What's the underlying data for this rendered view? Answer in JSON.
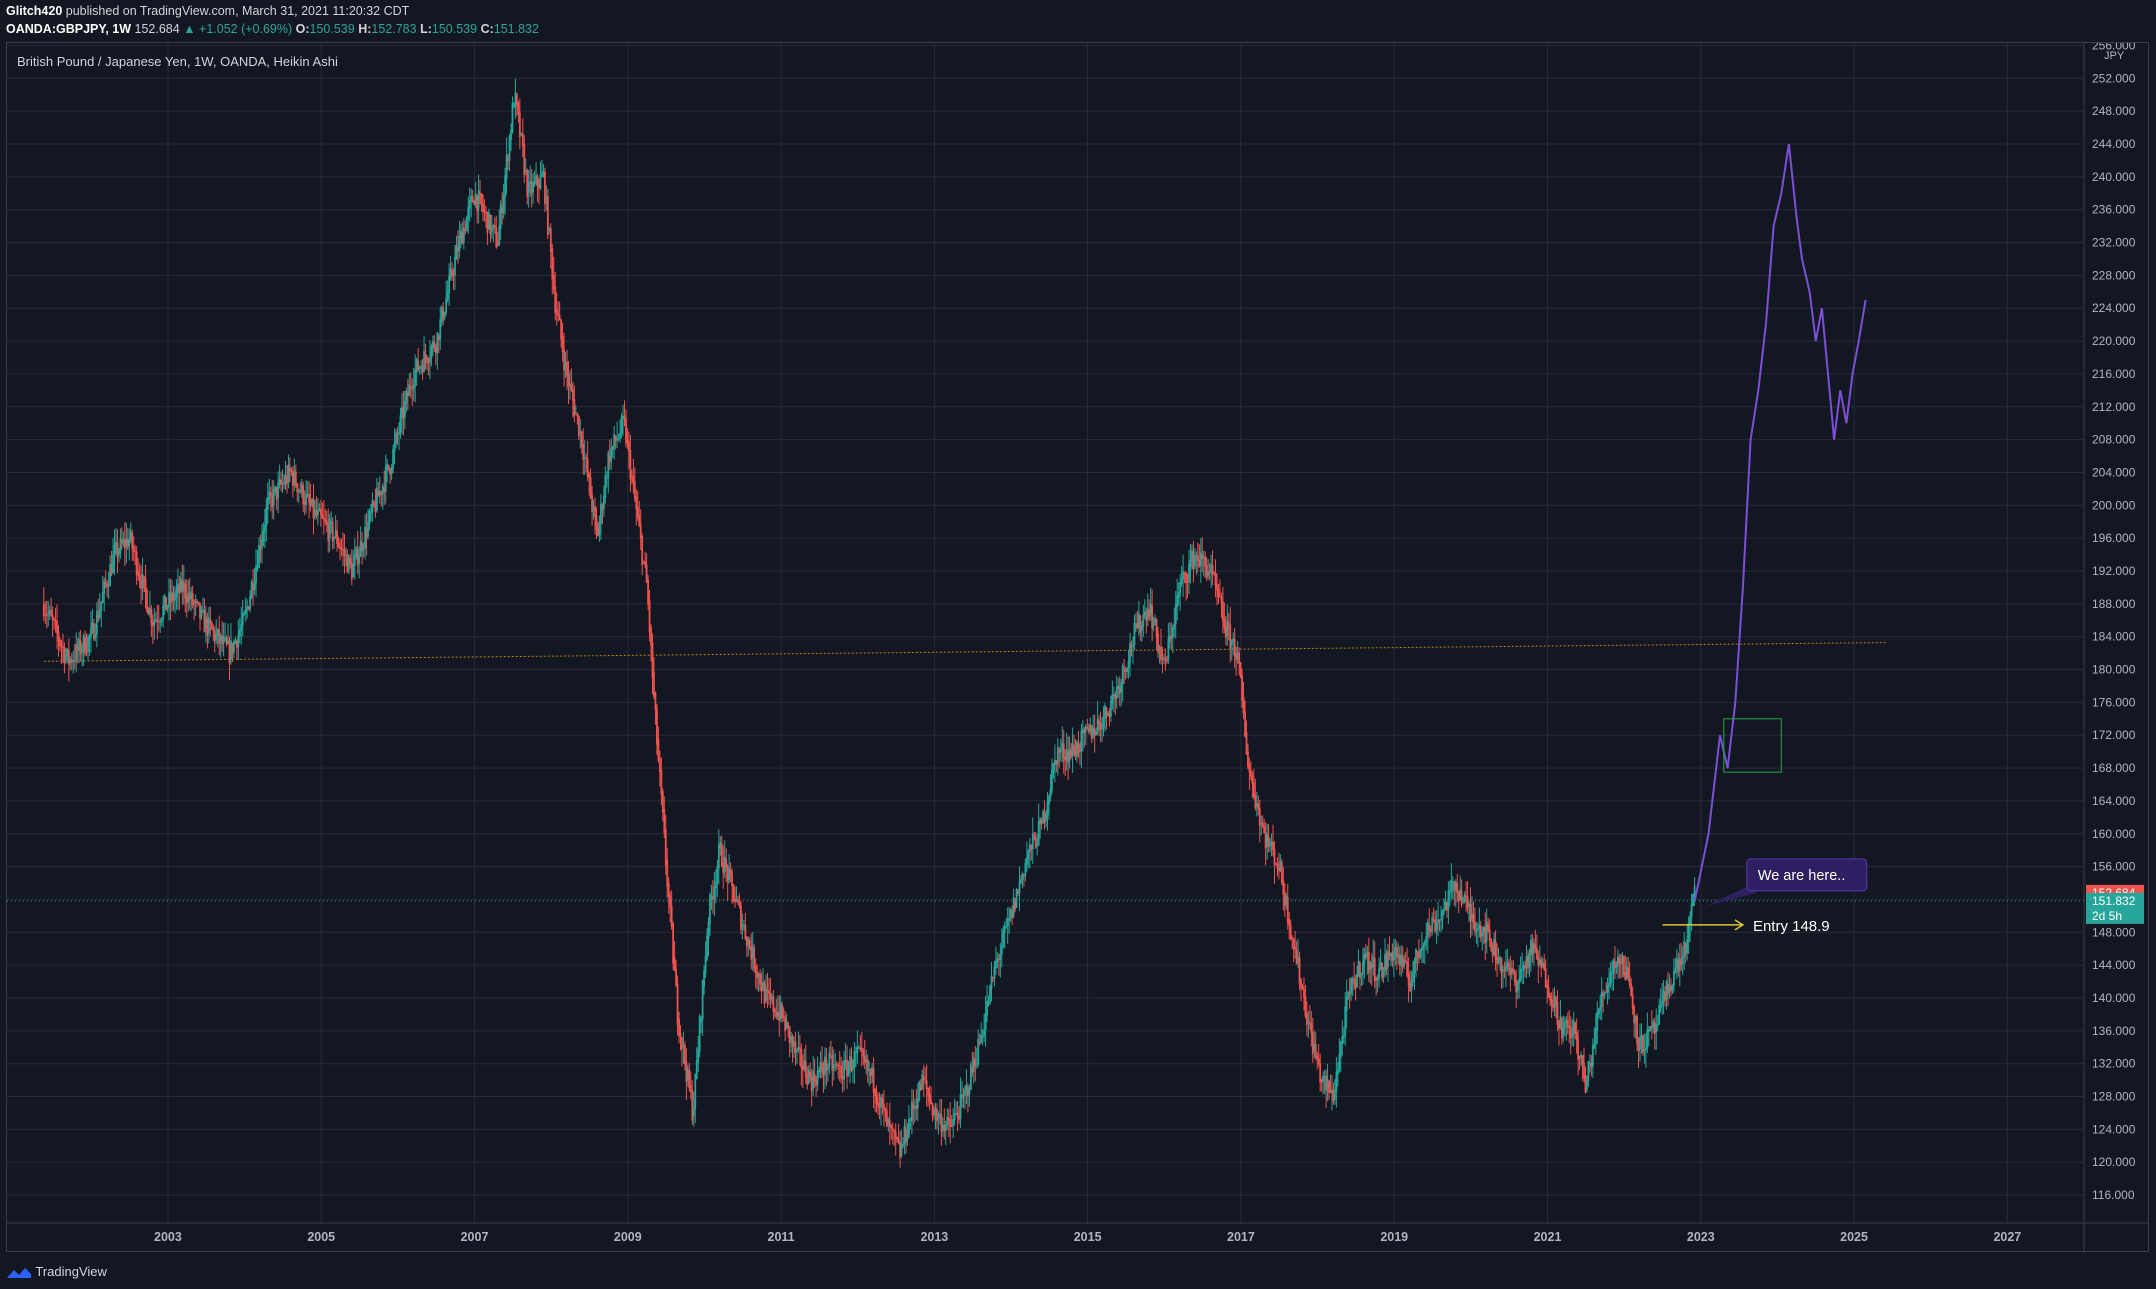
{
  "header": {
    "author": "Glitch420",
    "published": "published on TradingView.com, March 31, 2021 11:20:32 CDT",
    "symbol": "OANDA:GBPJPY, 1W",
    "last": "152.684",
    "change": "▲ +1.052 (+0.69%)",
    "open_label": "O:",
    "open": "150.539",
    "high_label": "H:",
    "high": "152.783",
    "low_label": "L:",
    "low": "150.539",
    "close_label": "C:",
    "close": "151.832"
  },
  "footer": {
    "brand": "TradingView"
  },
  "colors": {
    "background": "#131722",
    "grid": "#262b38",
    "up": "#26a69a",
    "down": "#ef5350",
    "projection": "#7b4fd6",
    "support_line": "#b8860b",
    "entry_arrow": "#e0c23a",
    "box": "#26a641"
  },
  "chart_data": {
    "type": "candlestick",
    "title": "British Pound / Japanese Yen, 1W, OANDA, Heikin Ashi",
    "currency": "JPY",
    "x_ticks": [
      "2003",
      "2005",
      "2007",
      "2009",
      "2011",
      "2013",
      "2015",
      "2017",
      "2019",
      "2021",
      "2023",
      "2025",
      "2027"
    ],
    "y_ticks": [
      116,
      120,
      124,
      128,
      132,
      136,
      140,
      144,
      148,
      152,
      156,
      160,
      164,
      168,
      172,
      176,
      180,
      184,
      188,
      192,
      196,
      200,
      204,
      208,
      212,
      216,
      220,
      224,
      228,
      232,
      236,
      240,
      244,
      248,
      252,
      256
    ],
    "y_tick_labels": [
      "116.000",
      "120.000",
      "124.000",
      "128.000",
      "132.000",
      "136.000",
      "140.000",
      "144.000",
      "148.000",
      "152.000",
      "156.000",
      "160.000",
      "164.000",
      "168.000",
      "172.000",
      "176.000",
      "180.000",
      "184.000",
      "188.000",
      "192.000",
      "196.000",
      "200.000",
      "204.000",
      "208.000",
      "212.000",
      "216.000",
      "220.000",
      "224.000",
      "228.000",
      "232.000",
      "236.000",
      "240.000",
      "244.000",
      "248.000",
      "252.000",
      "256.000"
    ],
    "xlim": [
      2001.9,
      2029.0
    ],
    "ylim": [
      112.6,
      256.3
    ],
    "price_path": [
      [
        2002.38,
        188
      ],
      [
        2002.7,
        181
      ],
      [
        2003.0,
        184
      ],
      [
        2003.3,
        194
      ],
      [
        2003.5,
        196
      ],
      [
        2003.8,
        186
      ],
      [
        2004.2,
        190
      ],
      [
        2004.45,
        186
      ],
      [
        2004.8,
        182
      ],
      [
        2005.0,
        186
      ],
      [
        2005.3,
        200
      ],
      [
        2005.6,
        204
      ],
      [
        2005.9,
        199
      ],
      [
        2006.2,
        196
      ],
      [
        2006.4,
        192
      ],
      [
        2006.7,
        200
      ],
      [
        2006.9,
        205
      ],
      [
        2007.2,
        216
      ],
      [
        2007.5,
        220
      ],
      [
        2007.8,
        232
      ],
      [
        2008.0,
        238
      ],
      [
        2008.3,
        232
      ],
      [
        2008.52,
        250
      ],
      [
        2008.7,
        238
      ],
      [
        2008.9,
        240
      ],
      [
        2009.05,
        225
      ],
      [
        2009.2,
        216
      ],
      [
        2009.4,
        208
      ],
      [
        2009.6,
        196
      ],
      [
        2009.75,
        206
      ],
      [
        2009.95,
        210
      ],
      [
        2010.1,
        200
      ],
      [
        2010.25,
        190
      ],
      [
        2010.35,
        175
      ],
      [
        2010.5,
        156
      ],
      [
        2010.65,
        138
      ],
      [
        2010.85,
        126
      ],
      [
        2011.05,
        150
      ],
      [
        2011.2,
        158
      ],
      [
        2011.4,
        152
      ],
      [
        2011.6,
        146
      ],
      [
        2011.8,
        140
      ],
      [
        2012.0,
        138
      ],
      [
        2012.2,
        133
      ],
      [
        2012.4,
        130
      ],
      [
        2012.6,
        132
      ],
      [
        2012.8,
        131
      ],
      [
        2013.0,
        133
      ],
      [
        2013.2,
        130
      ],
      [
        2013.4,
        124
      ],
      [
        2013.55,
        121
      ],
      [
        2013.7,
        126
      ],
      [
        2013.85,
        130
      ],
      [
        2014.0,
        126
      ],
      [
        2014.2,
        124
      ],
      [
        2014.4,
        128
      ],
      [
        2014.6,
        135
      ],
      [
        2014.8,
        144
      ],
      [
        2015.0,
        150
      ],
      [
        2015.2,
        157
      ],
      [
        2015.4,
        161
      ],
      [
        2015.6,
        170
      ],
      [
        2015.8,
        170
      ],
      [
        2016.0,
        172
      ],
      [
        2016.2,
        174
      ],
      [
        2016.4,
        178
      ],
      [
        2016.6,
        184
      ],
      [
        2016.8,
        188
      ],
      [
        2017.0,
        180
      ],
      [
        2017.2,
        190
      ],
      [
        2017.4,
        194
      ],
      [
        2017.6,
        192
      ],
      [
        2017.8,
        185
      ],
      [
        2017.95,
        182
      ],
      [
        2018.1,
        168
      ],
      [
        2018.3,
        160
      ],
      [
        2018.5,
        156
      ],
      [
        2018.7,
        146
      ],
      [
        2018.9,
        136
      ],
      [
        2019.05,
        130
      ],
      [
        2019.2,
        128
      ],
      [
        2019.4,
        140
      ],
      [
        2019.6,
        145
      ],
      [
        2019.8,
        143
      ],
      [
        2020.0,
        146
      ],
      [
        2020.2,
        142
      ],
      [
        2020.4,
        148
      ],
      [
        2020.6,
        150
      ],
      [
        2020.8,
        154
      ],
      [
        2021.0,
        150
      ],
      [
        2021.2,
        148
      ],
      [
        2021.4,
        144
      ],
      [
        2021.6,
        142
      ],
      [
        2021.8,
        146
      ],
      [
        2022.0,
        142
      ],
      [
        2022.2,
        136
      ],
      [
        2022.35,
        136
      ],
      [
        2022.5,
        129
      ],
      [
        2022.7,
        140
      ],
      [
        2022.9,
        145
      ],
      [
        2023.05,
        143
      ],
      [
        2023.2,
        134
      ],
      [
        2023.4,
        136
      ],
      [
        2023.6,
        142
      ],
      [
        2023.8,
        146
      ],
      [
        2023.92,
        152.7
      ]
    ],
    "projection_path": [
      [
        2023.92,
        151.8
      ],
      [
        2024.1,
        160
      ],
      [
        2024.25,
        172
      ],
      [
        2024.35,
        168
      ],
      [
        2024.45,
        176
      ],
      [
        2024.55,
        190
      ],
      [
        2024.65,
        208
      ],
      [
        2024.75,
        214
      ],
      [
        2024.85,
        222
      ],
      [
        2024.95,
        234
      ],
      [
        2025.05,
        238
      ],
      [
        2025.15,
        244
      ],
      [
        2025.25,
        235
      ],
      [
        2025.32,
        230
      ],
      [
        2025.42,
        226
      ],
      [
        2025.5,
        220
      ],
      [
        2025.58,
        224
      ],
      [
        2025.66,
        216
      ],
      [
        2025.74,
        208
      ],
      [
        2025.82,
        214
      ],
      [
        2025.9,
        210
      ],
      [
        2025.98,
        216
      ],
      [
        2026.06,
        220
      ],
      [
        2026.15,
        225
      ]
    ],
    "support_line": [
      [
        2002.38,
        181.0
      ],
      [
        2034.0,
        184.0
      ]
    ],
    "current_price_line": 151.832,
    "entry": {
      "price": 148.9,
      "label": "Entry 148.9"
    },
    "annotation": {
      "text": "We are here.."
    },
    "target_box": {
      "x": [
        2024.3,
        2025.05
      ],
      "y": [
        167.5,
        174.0
      ]
    },
    "price_badges": [
      {
        "value": "152.684",
        "color": "#ef5350"
      },
      {
        "value": "151.832",
        "color": "#26a69a"
      },
      {
        "value": "2d 5h",
        "color": "#26a69a"
      }
    ]
  }
}
